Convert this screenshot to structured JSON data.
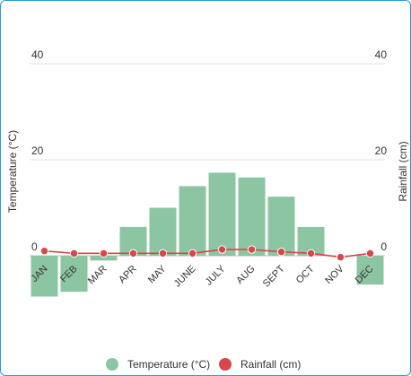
{
  "chart_data": {
    "type": "bar+line",
    "categories": [
      "JAN",
      "FEB",
      "MAR",
      "APR",
      "MAY",
      "JUNE",
      "JULY",
      "AUG",
      "SEPT",
      "OCT",
      "NOV",
      "DEC"
    ],
    "series": [
      {
        "name": "Temperature (°C)",
        "type": "bar",
        "axis": "left",
        "color": "#8cc5a2",
        "values": [
          -8.5,
          -7.5,
          -1,
          6,
          10,
          14.5,
          17.3,
          16.3,
          12.3,
          6,
          0,
          -6
        ]
      },
      {
        "name": "Rainfall (cm)",
        "type": "line",
        "axis": "right",
        "color": "#d9464a",
        "values": [
          1,
          0.5,
          0.5,
          0.5,
          0.5,
          0.5,
          1.3,
          1.3,
          0.8,
          0.5,
          -0.3,
          0.5
        ]
      }
    ],
    "ylabel_left": "Temperature (°C)",
    "ylabel_right": "Rainfall (cm)",
    "yticks": [
      0,
      20,
      40
    ],
    "ylim": [
      -12,
      42
    ],
    "grid": true,
    "legend_position": "bottom"
  }
}
